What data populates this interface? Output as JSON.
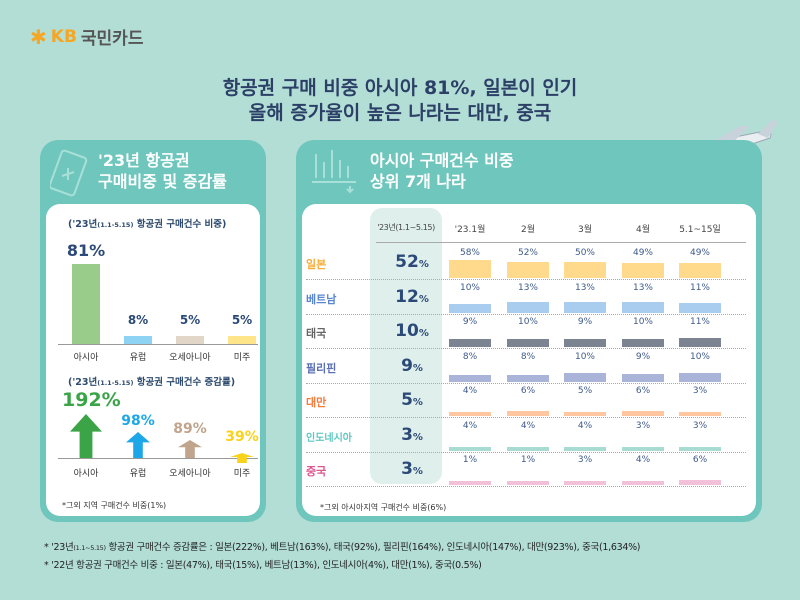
{
  "logo": {
    "brand": "KB",
    "name": "국민카드"
  },
  "title": {
    "line1": "항공권 구매 비중 아시아 81%, 일본이 인기",
    "line2": "올해 증가율이 높은 나라는 대만, 중국"
  },
  "left": {
    "header1": "'23년 항공권",
    "header2": "구매비중 및 증감률",
    "share_title": "('23년",
    "share_range": "(1.1-5.15)",
    "share_title_rest": "항공권 구매건수 비중)",
    "share": [
      {
        "label": "아시아",
        "value": "81%",
        "pct": 81,
        "color": "#99cc8a"
      },
      {
        "label": "유럽",
        "value": "8%",
        "pct": 8,
        "color": "#8fd3f4"
      },
      {
        "label": "오세아니아",
        "value": "5%",
        "pct": 5,
        "color": "#e2d6c8"
      },
      {
        "label": "미주",
        "value": "5%",
        "pct": 5,
        "color": "#ffe58a"
      }
    ],
    "growth_title": "('23년",
    "growth_range": "(1.1-5.15)",
    "growth_title_rest": "항공권 구매건수 증감률)",
    "growth": [
      {
        "label": "아시아",
        "value": "192%",
        "color": "#3aa447"
      },
      {
        "label": "유럽",
        "value": "98%",
        "color": "#1ea7e8"
      },
      {
        "label": "오세아니아",
        "value": "89%",
        "color": "#c1a48c"
      },
      {
        "label": "미주",
        "value": "39%",
        "color": "#f9d21a"
      }
    ],
    "note": "*그외 지역 구매건수 비중(1%)"
  },
  "right": {
    "header1": "아시아 구매건수 비중",
    "header2": "상위 7개 나라",
    "columns": [
      "'23년(1.1~5.15)",
      "'23.1월",
      "2월",
      "3월",
      "4월",
      "5.1~15일"
    ],
    "rows": [
      {
        "country": "일본",
        "color": "#f6ad3a",
        "bar": "#ffd98c",
        "total": "52",
        "months": [
          58,
          52,
          50,
          49,
          49
        ]
      },
      {
        "country": "베트남",
        "color": "#5a86d0",
        "bar": "#a9cdee",
        "total": "12",
        "months": [
          10,
          13,
          13,
          13,
          11
        ]
      },
      {
        "country": "태국",
        "color": "#666666",
        "bar": "#7b8490",
        "total": "10",
        "months": [
          9,
          10,
          9,
          10,
          11
        ]
      },
      {
        "country": "필리핀",
        "color": "#5b6fb5",
        "bar": "#aab3d8",
        "total": "9",
        "months": [
          8,
          8,
          10,
          9,
          10
        ]
      },
      {
        "country": "대만",
        "color": "#f77a3b",
        "bar": "#ffc6a0",
        "total": "5",
        "months": [
          4,
          6,
          5,
          6,
          3
        ]
      },
      {
        "country": "인도네시아",
        "color": "#5ec7c0",
        "bar": "#a8dcd3",
        "total": "3",
        "months": [
          4,
          4,
          4,
          3,
          3
        ]
      },
      {
        "country": "중국",
        "color": "#e0568f",
        "bar": "#f2c1d9",
        "total": "3",
        "months": [
          1,
          1,
          3,
          4,
          6
        ]
      }
    ],
    "pct_sign": "%",
    "note": "*그외 아시아지역 구매건수 비중(6%)"
  },
  "footnotes": {
    "f1_pre": "*  '23년",
    "f1_range": "(1.1~5.15)",
    "f1_rest": " 항공권 구매건수 증감률은 : 일본(222%), 베트남(163%), 태국(92%), 필리핀(164%), 인도네시아(147%), 대만(923%), 중국(1,634%)",
    "f2": "*  '22년 항공권 구매건수 비중 : 일본(47%), 태국(15%), 베트남(13%), 인도네시아(4%), 대만(1%), 중국(0.5%)"
  }
}
